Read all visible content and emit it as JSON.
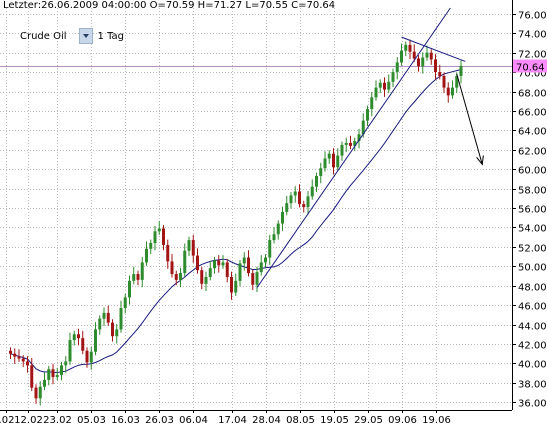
{
  "header": {
    "info": "Letzter:26.06.2009 04:00:00 O=70.59 H=71.27 L=70.55 C=70.64"
  },
  "toolbar": {
    "symbol": "Crude Oil",
    "interval": "1 Tag"
  },
  "colors": {
    "up": "#2e8b2e",
    "down": "#a31515",
    "ma": "#1a1a80",
    "trend": "#1a1a80",
    "price_line": "#b58fc4",
    "last_price_bg": "#ff8cff",
    "grid": "#bcbcbc"
  },
  "chart_data": {
    "type": "candlestick",
    "instrument": "Crude Oil",
    "interval": "1 Tag",
    "last_price": "70.64",
    "ylim": [
      35.2,
      76.6
    ],
    "y_ticks": [
      "36.00",
      "38.00",
      "40.00",
      "42.00",
      "44.00",
      "46.00",
      "48.00",
      "50.00",
      "52.00",
      "54.00",
      "56.00",
      "58.00",
      "60.00",
      "62.00",
      "64.00",
      "66.00",
      "68.00",
      "70.00",
      "72.00",
      "74.00",
      "76.00"
    ],
    "x_labels": [
      {
        "label": ".02",
        "i": -1
      },
      {
        "label": "12.02",
        "i": 4
      },
      {
        "label": "23.02",
        "i": 11
      },
      {
        "label": "05.03",
        "i": 19
      },
      {
        "label": "16.03",
        "i": 27
      },
      {
        "label": "26.03",
        "i": 35
      },
      {
        "label": "06.04",
        "i": 43
      },
      {
        "label": "17.04",
        "i": 52
      },
      {
        "label": "28.04",
        "i": 60
      },
      {
        "label": "08.05",
        "i": 68
      },
      {
        "label": "19.05",
        "i": 76
      },
      {
        "label": "29.05",
        "i": 84
      },
      {
        "label": "09.06",
        "i": 92
      },
      {
        "label": "19.06",
        "i": 100
      }
    ],
    "closes": [
      41.0,
      40.7,
      40.5,
      40.2,
      39.8,
      37.5,
      36.4,
      37.6,
      38.3,
      39.4,
      38.6,
      38.8,
      39.8,
      40.2,
      42.4,
      43.0,
      42.6,
      41.3,
      40.1,
      41.2,
      43.5,
      44.6,
      45.2,
      44.2,
      42.8,
      43.5,
      45.7,
      46.8,
      48.5,
      49.2,
      48.6,
      50.4,
      51.8,
      52.4,
      53.6,
      53.9,
      52.2,
      50.5,
      49.2,
      48.6,
      49.3,
      51.6,
      52.7,
      51.1,
      49.6,
      48.2,
      48.9,
      49.8,
      50.6,
      50.1,
      50.4,
      48.9,
      47.3,
      48.5,
      50.3,
      50.9,
      49.3,
      48.1,
      49.4,
      50.4,
      50.9,
      52.7,
      53.3,
      54.4,
      55.6,
      56.5,
      57.3,
      57.7,
      56.4,
      56.1,
      57.2,
      58.2,
      59.3,
      60.1,
      61.1,
      61.6,
      60.2,
      61.4,
      62.5,
      62.7,
      62.4,
      62.9,
      63.6,
      65.0,
      66.2,
      67.4,
      68.4,
      68.9,
      68.2,
      69.0,
      70.0,
      71.0,
      72.2,
      72.8,
      72.1,
      71.4,
      70.6,
      71.5,
      72.0,
      71.3,
      70.0,
      69.6,
      68.4,
      67.6,
      68.4,
      69.6,
      70.64
    ],
    "moving_average": {
      "period": 20
    },
    "trendlines": [
      {
        "from": [
          58,
          47.8
        ],
        "to": [
          103.5,
          76.6
        ]
      },
      {
        "from": [
          92,
          73.6
        ],
        "to": [
          107,
          71.1
        ]
      }
    ],
    "projection": {
      "from": [
        105,
        69.8
      ],
      "to": [
        111,
        60.5
      ]
    }
  }
}
